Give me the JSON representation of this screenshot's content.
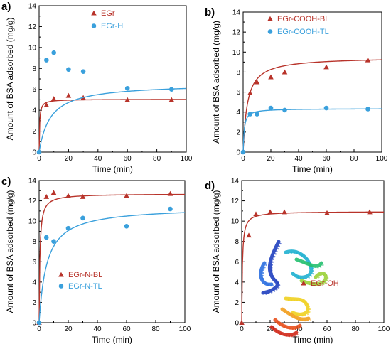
{
  "colors": {
    "red": "#b8332a",
    "blue": "#3aa0dc"
  },
  "chart_data": [
    {
      "panel": "a)",
      "type": "scatter",
      "xlabel": "Time (min)",
      "ylabel": "Amount of BSA adsorbed (mg/g)",
      "xlim": [
        0,
        100
      ],
      "ylim": [
        0,
        14
      ],
      "xticks": [
        0,
        20,
        40,
        60,
        80,
        100
      ],
      "yticks": [
        0,
        2,
        4,
        6,
        8,
        10,
        12,
        14
      ],
      "legend_position": "top-center",
      "series": [
        {
          "name": "EGr",
          "marker": "triangle",
          "color": "#b8332a",
          "points": [
            [
              0,
              0
            ],
            [
              5,
              4.5
            ],
            [
              10,
              5.1
            ],
            [
              20,
              5.4
            ],
            [
              30,
              5.2
            ],
            [
              60,
              5.0
            ],
            [
              90,
              5.0
            ]
          ],
          "fit": {
            "qe": 5.05,
            "k": 0.6
          }
        },
        {
          "name": "EGr-H",
          "marker": "circle",
          "color": "#3aa0dc",
          "points": [
            [
              0,
              0
            ],
            [
              5,
              8.8
            ],
            [
              10,
              9.5
            ],
            [
              20,
              7.9
            ],
            [
              30,
              7.7
            ],
            [
              60,
              6.1
            ],
            [
              90,
              6.0
            ]
          ],
          "fit": {
            "qe": 6.55,
            "k": 0.02
          }
        }
      ]
    },
    {
      "panel": "b)",
      "type": "scatter",
      "xlabel": "Time (min)",
      "ylabel": "Amount of BSA adsorbed (mg/g)",
      "xlim": [
        0,
        100
      ],
      "ylim": [
        0,
        14
      ],
      "xticks": [
        0,
        20,
        40,
        60,
        80,
        100
      ],
      "yticks": [
        0,
        2,
        4,
        6,
        8,
        10,
        12,
        14
      ],
      "legend_position": "top-center",
      "series": [
        {
          "name": "EGr-COOH-BL",
          "marker": "triangle",
          "color": "#b8332a",
          "points": [
            [
              0,
              0
            ],
            [
              5,
              5.9
            ],
            [
              10,
              7.0
            ],
            [
              20,
              7.5
            ],
            [
              30,
              8.0
            ],
            [
              60,
              8.5
            ],
            [
              90,
              9.2
            ]
          ],
          "fit": {
            "qe": 9.5,
            "k": 0.035
          }
        },
        {
          "name": "EGr-COOH-TL",
          "marker": "circle",
          "color": "#3aa0dc",
          "points": [
            [
              0,
              0
            ],
            [
              5,
              3.8
            ],
            [
              10,
              3.8
            ],
            [
              20,
              4.4
            ],
            [
              30,
              4.2
            ],
            [
              60,
              4.4
            ],
            [
              90,
              4.3
            ]
          ],
          "fit": {
            "qe": 4.35,
            "k": 0.3
          }
        }
      ]
    },
    {
      "panel": "c)",
      "type": "scatter",
      "xlabel": "Time (min)",
      "ylabel": "Amount of BSA adsorbed (mg/g)",
      "xlim": [
        0,
        100
      ],
      "ylim": [
        0,
        14
      ],
      "xticks": [
        0,
        20,
        40,
        60,
        80,
        100
      ],
      "yticks": [
        0,
        2,
        4,
        6,
        8,
        10,
        12,
        14
      ],
      "legend_position": "bottom-right",
      "series": [
        {
          "name": "EGr-N-BL",
          "marker": "triangle",
          "color": "#b8332a",
          "points": [
            [
              0,
              0
            ],
            [
              5,
              12.4
            ],
            [
              10,
              12.8
            ],
            [
              20,
              12.5
            ],
            [
              30,
              12.4
            ],
            [
              60,
              12.5
            ],
            [
              90,
              12.7
            ]
          ],
          "fit": {
            "qe": 12.7,
            "k": 0.15
          }
        },
        {
          "name": "EGr-N-TL",
          "marker": "circle",
          "color": "#3aa0dc",
          "points": [
            [
              0,
              0
            ],
            [
              5,
              8.4
            ],
            [
              10,
              8.0
            ],
            [
              20,
              9.3
            ],
            [
              30,
              10.3
            ],
            [
              60,
              9.5
            ],
            [
              90,
              11.2
            ]
          ],
          "fit": {
            "qe": 11.4,
            "k": 0.017
          }
        }
      ]
    },
    {
      "panel": "d)",
      "type": "scatter",
      "xlabel": "Time (min)",
      "ylabel": "Amount of BSA adsorbed (mg/g)",
      "xlim": [
        0,
        100
      ],
      "ylim": [
        0,
        14
      ],
      "xticks": [
        0,
        20,
        40,
        60,
        80,
        100
      ],
      "yticks": [
        0,
        2,
        4,
        6,
        8,
        10,
        12,
        14
      ],
      "legend_position": "bottom-right",
      "inset": "protein-ribbon-structure",
      "series": [
        {
          "name": "EGr-OH",
          "marker": "triangle",
          "color": "#b8332a",
          "points": [
            [
              0,
              0
            ],
            [
              5,
              8.6
            ],
            [
              10,
              10.7
            ],
            [
              20,
              10.9
            ],
            [
              30,
              10.9
            ],
            [
              60,
              10.8
            ],
            [
              90,
              10.9
            ]
          ],
          "fit": {
            "qe": 10.95,
            "k": 0.2
          }
        }
      ]
    }
  ]
}
